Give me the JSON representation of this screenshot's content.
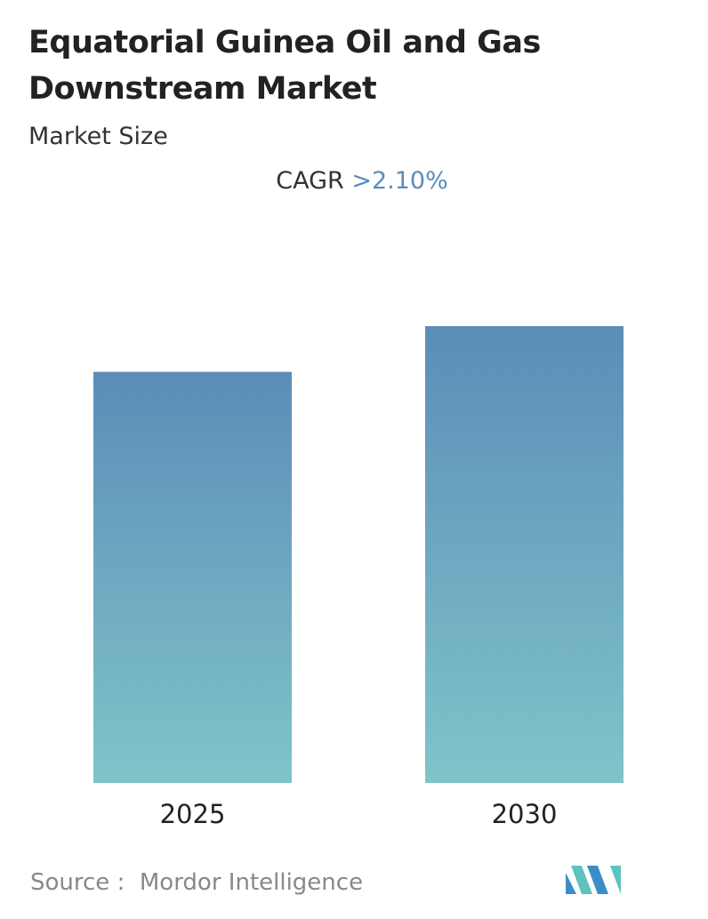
{
  "chart_data": {
    "type": "bar",
    "title": "Equatorial Guinea Oil and Gas Downstream Market",
    "subtitle": "Market Size",
    "cagr_label": "CAGR",
    "cagr_value": ">2.10%",
    "categories": [
      "2025",
      "2030"
    ],
    "values": [
      90,
      100
    ],
    "gradient": [
      "#5b8db8",
      "#80c4c9"
    ],
    "source_label": "Source :",
    "source": "Mordor Intelligence"
  }
}
